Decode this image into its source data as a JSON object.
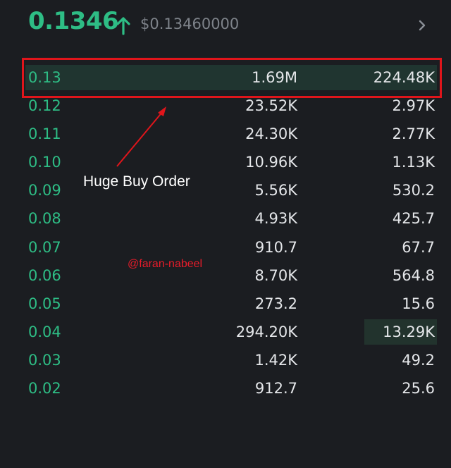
{
  "header": {
    "price": "0.1346",
    "usd_price": "$0.13460000",
    "trend_icon": "arrow-up-icon",
    "nav_icon": "chevron-right-icon"
  },
  "orderbook": {
    "rows": [
      {
        "price": "0.13",
        "amount": "1.69M",
        "total": "224.48K"
      },
      {
        "price": "0.12",
        "amount": "23.52K",
        "total": "2.97K"
      },
      {
        "price": "0.11",
        "amount": "24.30K",
        "total": "2.77K"
      },
      {
        "price": "0.10",
        "amount": "10.96K",
        "total": "1.13K"
      },
      {
        "price": "0.09",
        "amount": "5.56K",
        "total": "530.2"
      },
      {
        "price": "0.08",
        "amount": "4.93K",
        "total": "425.7"
      },
      {
        "price": "0.07",
        "amount": "910.7",
        "total": "67.7"
      },
      {
        "price": "0.06",
        "amount": "8.70K",
        "total": "564.8"
      },
      {
        "price": "0.05",
        "amount": "273.2",
        "total": "15.6"
      },
      {
        "price": "0.04",
        "amount": "294.20K",
        "total": "13.29K"
      },
      {
        "price": "0.03",
        "amount": "1.42K",
        "total": "49.2"
      },
      {
        "price": "0.02",
        "amount": "912.7",
        "total": "25.6"
      }
    ]
  },
  "annotation": {
    "label": "Huge Buy Order",
    "watermark": "@faran-nabeel"
  },
  "colors": {
    "buy": "#2ebd85",
    "highlight_box": "#e0151b",
    "background": "#1b1d21"
  }
}
